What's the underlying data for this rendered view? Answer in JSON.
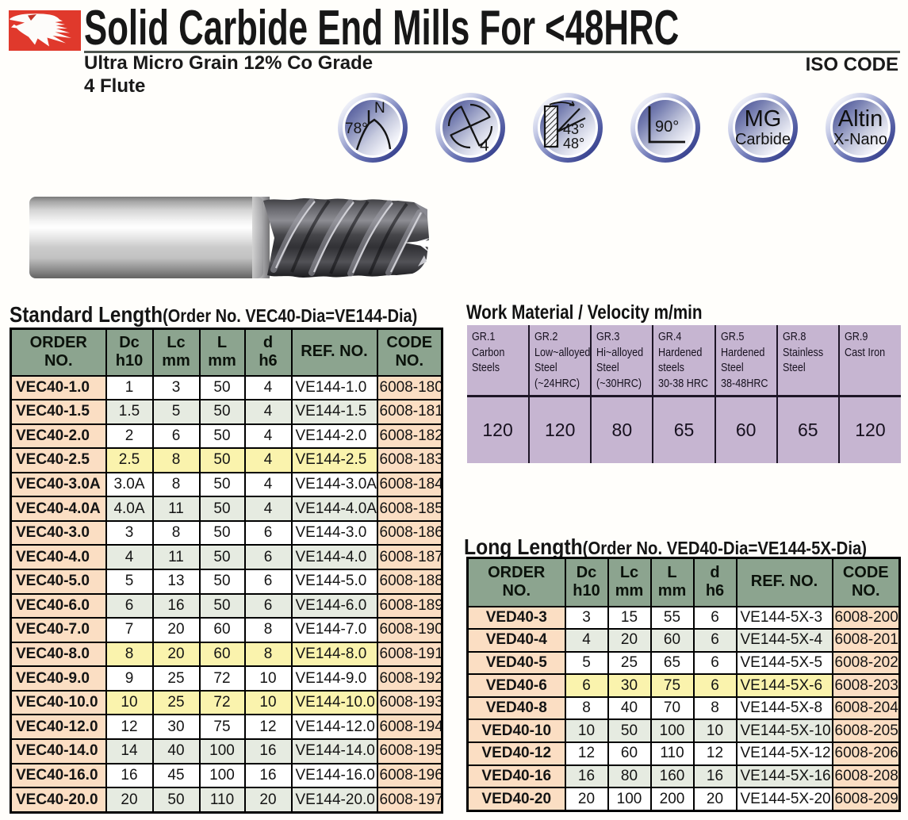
{
  "header": {
    "title": "Solid Carbide End Mills For <48HRC",
    "subtitle_line1": "Ultra Micro Grain 12% Co Grade",
    "subtitle_line2": "4 Flute",
    "iso_code": "ISO CODE",
    "brand_color": "#e0392c"
  },
  "feature_badges": [
    {
      "id": "helix-angle",
      "labels": {
        "top": "N",
        "angle": "78°"
      }
    },
    {
      "id": "flute-count",
      "labels": {
        "count": "4"
      }
    },
    {
      "id": "gash-angles",
      "labels": {
        "angle1": "43°",
        "angle2": "48°"
      }
    },
    {
      "id": "corner-angle",
      "labels": {
        "angle": "90°"
      }
    },
    {
      "id": "carbide-grade",
      "labels": {
        "line1": "MG",
        "line2": "Carbide"
      }
    },
    {
      "id": "coating",
      "labels": {
        "line1": "Altin",
        "line2": "X-Nano"
      }
    }
  ],
  "standard_table": {
    "title": "Standard Length",
    "title_suffix": "(Order No. VEC40-Dia=VE144-Dia)",
    "headers": [
      "ORDER\nNO.",
      "Dc\nh10",
      "Lc\nmm",
      "L\nmm",
      "d\nh6",
      "REF. NO.",
      "CODE\nNO."
    ],
    "rows": [
      {
        "order": "VEC40-1.0",
        "dc": "1",
        "lc": "3",
        "l": "50",
        "d": "4",
        "ref": "VE144-1.0",
        "code": "6008-180",
        "band": "white"
      },
      {
        "order": "VEC40-1.5",
        "dc": "1.5",
        "lc": "5",
        "l": "50",
        "d": "4",
        "ref": "VE144-1.5",
        "code": "6008-181",
        "band": "green"
      },
      {
        "order": "VEC40-2.0",
        "dc": "2",
        "lc": "6",
        "l": "50",
        "d": "4",
        "ref": "VE144-2.0",
        "code": "6008-182",
        "band": "white"
      },
      {
        "order": "VEC40-2.5",
        "dc": "2.5",
        "lc": "8",
        "l": "50",
        "d": "4",
        "ref": "VE144-2.5",
        "code": "6008-183",
        "band": "yellow"
      },
      {
        "order": "VEC40-3.0A",
        "dc": "3.0A",
        "lc": "8",
        "l": "50",
        "d": "4",
        "ref": "VE144-3.0A",
        "code": "6008-184",
        "band": "white"
      },
      {
        "order": "VEC40-4.0A",
        "dc": "4.0A",
        "lc": "11",
        "l": "50",
        "d": "4",
        "ref": "VE144-4.0A",
        "code": "6008-185",
        "band": "green"
      },
      {
        "order": "VEC40-3.0",
        "dc": "3",
        "lc": "8",
        "l": "50",
        "d": "6",
        "ref": "VE144-3.0",
        "code": "6008-186",
        "band": "white"
      },
      {
        "order": "VEC40-4.0",
        "dc": "4",
        "lc": "11",
        "l": "50",
        "d": "6",
        "ref": "VE144-4.0",
        "code": "6008-187",
        "band": "green"
      },
      {
        "order": "VEC40-5.0",
        "dc": "5",
        "lc": "13",
        "l": "50",
        "d": "6",
        "ref": "VE144-5.0",
        "code": "6008-188",
        "band": "white"
      },
      {
        "order": "VEC40-6.0",
        "dc": "6",
        "lc": "16",
        "l": "50",
        "d": "6",
        "ref": "VE144-6.0",
        "code": "6008-189",
        "band": "green"
      },
      {
        "order": "VEC40-7.0",
        "dc": "7",
        "lc": "20",
        "l": "60",
        "d": "8",
        "ref": "VE144-7.0",
        "code": "6008-190",
        "band": "white"
      },
      {
        "order": "VEC40-8.0",
        "dc": "8",
        "lc": "20",
        "l": "60",
        "d": "8",
        "ref": "VE144-8.0",
        "code": "6008-191",
        "band": "yellow"
      },
      {
        "order": "VEC40-9.0",
        "dc": "9",
        "lc": "25",
        "l": "72",
        "d": "10",
        "ref": "VE144-9.0",
        "code": "6008-192",
        "band": "white"
      },
      {
        "order": "VEC40-10.0",
        "dc": "10",
        "lc": "25",
        "l": "72",
        "d": "10",
        "ref": "VE144-10.0",
        "code": "6008-193",
        "band": "yellow"
      },
      {
        "order": "VEC40-12.0",
        "dc": "12",
        "lc": "30",
        "l": "75",
        "d": "12",
        "ref": "VE144-12.0",
        "code": "6008-194",
        "band": "white"
      },
      {
        "order": "VEC40-14.0",
        "dc": "14",
        "lc": "40",
        "l": "100",
        "d": "16",
        "ref": "VE144-14.0",
        "code": "6008-195",
        "band": "green"
      },
      {
        "order": "VEC40-16.0",
        "dc": "16",
        "lc": "45",
        "l": "100",
        "d": "16",
        "ref": "VE144-16.0",
        "code": "6008-196",
        "band": "white"
      },
      {
        "order": "VEC40-20.0",
        "dc": "20",
        "lc": "50",
        "l": "110",
        "d": "20",
        "ref": "VE144-20.0",
        "code": "6008-197",
        "band": "green"
      }
    ]
  },
  "work_material_table": {
    "title": "Work Material / Velocity m/min",
    "columns": [
      {
        "header": "GR.1\nCarbon\nSteels",
        "value": "120"
      },
      {
        "header": "GR.2\nLow~alloyed\nSteel\n(~24HRC)",
        "value": "120"
      },
      {
        "header": "GR.3\nHi~alloyed\nSteel\n(~30HRC)",
        "value": "80"
      },
      {
        "header": "GR.4\nHardened\nsteels\n30-38 HRC",
        "value": "65"
      },
      {
        "header": "GR.5\nHardened\nSteel\n38-48HRC",
        "value": "60"
      },
      {
        "header": "GR.8\nStainless\nSteel",
        "value": "65"
      },
      {
        "header": "GR.9\nCast Iron",
        "value": "120"
      }
    ]
  },
  "long_table": {
    "title": "Long Length",
    "title_suffix": "(Order No. VED40-Dia=VE144-5X-Dia)",
    "headers": [
      "ORDER\nNO.",
      "Dc\nh10",
      "Lc\nmm",
      "L\nmm",
      "d\nh6",
      "REF. NO.",
      "CODE\nNO."
    ],
    "rows": [
      {
        "order": "VED40-3",
        "dc": "3",
        "lc": "15",
        "l": "55",
        "d": "6",
        "ref": "VE144-5X-3",
        "code": "6008-200",
        "band": "white"
      },
      {
        "order": "VED40-4",
        "dc": "4",
        "lc": "20",
        "l": "60",
        "d": "6",
        "ref": "VE144-5X-4",
        "code": "6008-201",
        "band": "green"
      },
      {
        "order": "VED40-5",
        "dc": "5",
        "lc": "25",
        "l": "65",
        "d": "6",
        "ref": "VE144-5X-5",
        "code": "6008-202",
        "band": "white"
      },
      {
        "order": "VED40-6",
        "dc": "6",
        "lc": "30",
        "l": "75",
        "d": "6",
        "ref": "VE144-5X-6",
        "code": "6008-203",
        "band": "yellow"
      },
      {
        "order": "VED40-8",
        "dc": "8",
        "lc": "40",
        "l": "70",
        "d": "8",
        "ref": "VE144-5X-8",
        "code": "6008-204",
        "band": "white"
      },
      {
        "order": "VED40-10",
        "dc": "10",
        "lc": "50",
        "l": "100",
        "d": "10",
        "ref": "VE144-5X-10",
        "code": "6008-205",
        "band": "green"
      },
      {
        "order": "VED40-12",
        "dc": "12",
        "lc": "60",
        "l": "110",
        "d": "12",
        "ref": "VE144-5X-12",
        "code": "6008-206",
        "band": "white"
      },
      {
        "order": "VED40-16",
        "dc": "16",
        "lc": "80",
        "l": "160",
        "d": "16",
        "ref": "VE144-5X-16",
        "code": "6008-208",
        "band": "green"
      },
      {
        "order": "VED40-20",
        "dc": "20",
        "lc": "100",
        "l": "200",
        "d": "20",
        "ref": "VE144-5X-20",
        "code": "6008-209",
        "band": "white"
      }
    ]
  },
  "colors": {
    "header_green": "#8ca48f",
    "row_peach": "#fbdec3",
    "row_green": "#e6ebe1",
    "row_yellow": "#faf3ad",
    "work_purple": "#c6b5d1"
  }
}
